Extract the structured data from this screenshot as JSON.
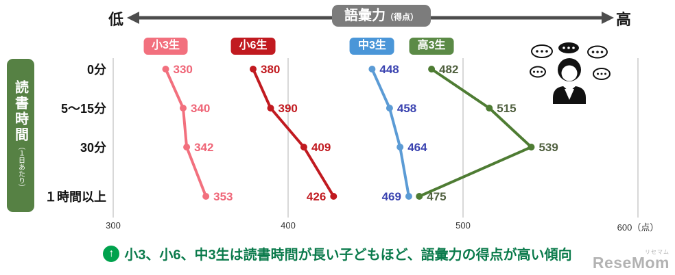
{
  "top_axis": {
    "low_label": "低",
    "high_label": "高",
    "title": "語彙力",
    "title_suffix": "（得点）"
  },
  "y_axis_label": {
    "main": "読書時間",
    "sub": "（１日あたり）"
  },
  "footer": {
    "note": "小3、小6、中3生は読書時間が長い子どもほど、語彙力の得点が高い傾向",
    "note_icon": "up-arrow-in-green-circle",
    "watermark": "ReseMom",
    "watermark_small": "リセマム"
  },
  "colors": {
    "grade3_elem": "#f2707e",
    "grade6_elem": "#c11a20",
    "grade3_jhs": "#5b9bd5",
    "grade3_hs": "#4e7c33",
    "axis_badge": "#7c7c7c",
    "ylabel_box": "#568144",
    "note_green": "#0a7a4b",
    "gridline": "#cccccc"
  },
  "chart_data": {
    "type": "line",
    "orientation": "horizontal-dot-line",
    "title": "語彙力（得点）",
    "categories": [
      "0分",
      "5～15分",
      "30分",
      "１時間以上"
    ],
    "x_axis": {
      "min": 300,
      "max": 600,
      "tick_values": [
        300,
        400,
        500,
        600
      ],
      "tick_labels": [
        "300",
        "400",
        "500",
        "600（点）"
      ]
    },
    "grid": "vertical-only",
    "legend_position": "above-first-point",
    "series": [
      {
        "name": "小3生",
        "color": "#f2707e",
        "badge_color": "#f2707e",
        "label_color": "#ef6577",
        "values": [
          330,
          340,
          342,
          353
        ],
        "label_sides": [
          "right",
          "right",
          "right",
          "right"
        ]
      },
      {
        "name": "小6生",
        "color": "#c11a20",
        "badge_color": "#c11a20",
        "label_color": "#c11a20",
        "values": [
          380,
          390,
          409,
          426
        ],
        "label_sides": [
          "right",
          "right",
          "right",
          "left"
        ]
      },
      {
        "name": "中3生",
        "color": "#5b9bd5",
        "badge_color": "#4a96d8",
        "label_color": "#3a43b0",
        "values": [
          448,
          458,
          464,
          469
        ],
        "label_sides": [
          "right",
          "right",
          "right",
          "left"
        ]
      },
      {
        "name": "高3生",
        "color": "#4e7c33",
        "badge_color": "#5b8a46",
        "label_color": "#50603f",
        "values": [
          482,
          515,
          539,
          475
        ],
        "label_sides": [
          "right",
          "right",
          "right",
          "right"
        ]
      }
    ]
  }
}
